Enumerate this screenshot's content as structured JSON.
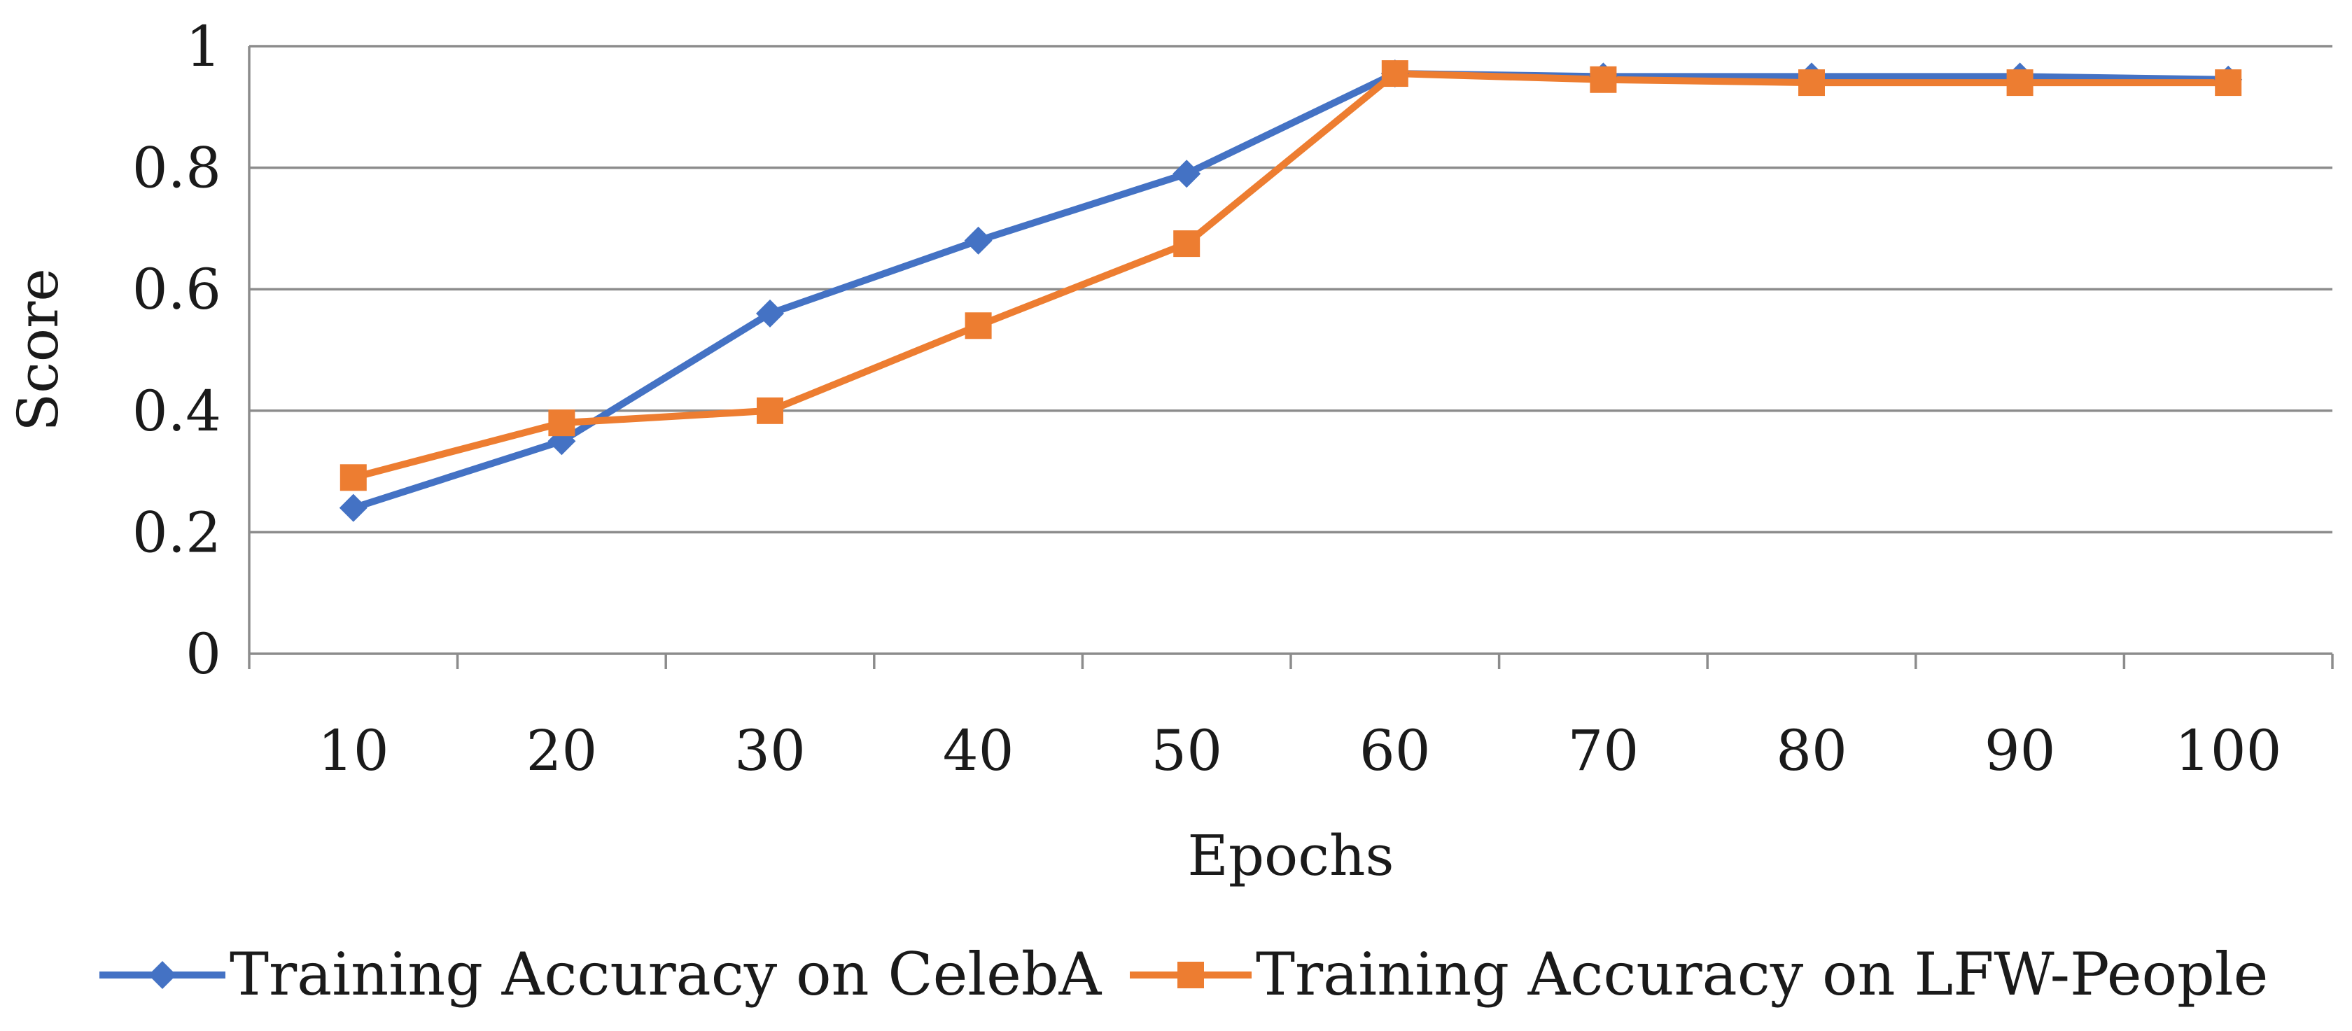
{
  "chart_data": {
    "type": "line",
    "title": "",
    "xlabel": "Epochs",
    "ylabel": "Score",
    "categories": [
      "10",
      "20",
      "30",
      "40",
      "50",
      "60",
      "70",
      "80",
      "90",
      "100"
    ],
    "ylim": [
      0,
      1
    ],
    "yticks": [
      0,
      0.2,
      0.4,
      0.6,
      0.8,
      1
    ],
    "ytick_labels": [
      "0",
      "0.2",
      "0.4",
      "0.6",
      "0.8",
      "1"
    ],
    "grid": true,
    "legend_position": "bottom",
    "series": [
      {
        "name": "Training Accuracy on CelebA",
        "color": "#4472c4",
        "marker": "diamond",
        "values": [
          0.24,
          0.35,
          0.56,
          0.68,
          0.79,
          0.955,
          0.95,
          0.95,
          0.95,
          0.945
        ]
      },
      {
        "name": "Training Accuracy on LFW-People",
        "color": "#ed7d31",
        "marker": "square",
        "values": [
          0.29,
          0.38,
          0.4,
          0.54,
          0.675,
          0.955,
          0.945,
          0.94,
          0.94,
          0.94
        ]
      }
    ]
  }
}
